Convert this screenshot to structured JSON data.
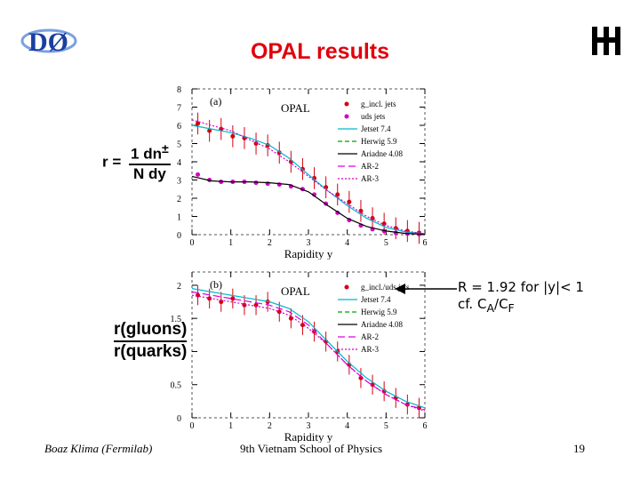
{
  "slide": {
    "title": "OPAL results",
    "footer_left": "Boaz Klima (Fermilab)",
    "footer_center": "9th Vietnam School of Physics",
    "page_number": "19",
    "annotation_line1": "R = 1.92 for |y|< 1",
    "annotation_line2": "cf. C",
    "annotation_sub_a": "A",
    "annotation_slash": "/C",
    "annotation_sub_f": "F",
    "logo_left_text": "DØ",
    "formula_r_prefix": "r =",
    "formula_r_num": "1 dn",
    "formula_r_den": "N dy",
    "formula_r_sup": "±",
    "ratio_num": "r(gluons)",
    "ratio_den": "r(quarks)",
    "colors": {
      "title": "#e0000b",
      "gluon": "#d40010",
      "uds": "#d400c8",
      "jetset": "#00b8c8",
      "ariadne": "#000000",
      "ar2": "#e000e0",
      "herwig": "#00a000"
    }
  },
  "chart_data": [
    {
      "type": "line",
      "panel_label": "(a)",
      "experiment": "OPAL",
      "xlabel": "Rapidity y",
      "ylabel": "r",
      "xlim": [
        0,
        6
      ],
      "ylim": [
        0,
        8
      ],
      "xticks": [
        "0",
        "1",
        "2",
        "3",
        "4",
        "5",
        "6"
      ],
      "yticks": [
        "0",
        "1",
        "2",
        "3",
        "4",
        "5",
        "6",
        "7",
        "8"
      ],
      "legend": [
        "g_incl. jets",
        "uds jets",
        "Jetset 7.4",
        "Herwig 5.9",
        "Ariadne 4.08",
        "AR-2",
        "AR-3"
      ],
      "series": [
        {
          "name": "g_incl. jets",
          "kind": "points",
          "x": [
            0.15,
            0.45,
            0.75,
            1.05,
            1.35,
            1.65,
            1.95,
            2.25,
            2.55,
            2.85,
            3.15,
            3.45,
            3.75,
            4.05,
            4.35,
            4.65,
            4.95,
            5.25,
            5.55,
            5.85
          ],
          "y": [
            6.1,
            5.7,
            5.8,
            5.4,
            5.3,
            5.0,
            4.9,
            4.5,
            4.0,
            3.6,
            3.1,
            2.6,
            2.2,
            1.8,
            1.3,
            0.9,
            0.6,
            0.35,
            0.2,
            0.1
          ],
          "err": 0.6
        },
        {
          "name": "uds jets",
          "kind": "points",
          "x": [
            0.15,
            0.45,
            0.75,
            1.05,
            1.35,
            1.65,
            1.95,
            2.25,
            2.55,
            2.85,
            3.15,
            3.45,
            3.75,
            4.05,
            4.35,
            4.65,
            4.95,
            5.25,
            5.55,
            5.85
          ],
          "y": [
            3.3,
            3.0,
            2.9,
            2.9,
            2.9,
            2.85,
            2.8,
            2.75,
            2.65,
            2.5,
            2.2,
            1.7,
            1.2,
            0.8,
            0.5,
            0.3,
            0.2,
            0.1,
            0.05,
            0.02
          ],
          "err": 0.08
        },
        {
          "name": "Jetset 7.4",
          "kind": "line",
          "x": [
            0,
            0.5,
            1,
            1.5,
            2,
            2.5,
            3,
            3.5,
            4,
            4.5,
            5,
            5.5,
            6
          ],
          "y": [
            6.0,
            5.8,
            5.6,
            5.3,
            4.9,
            4.2,
            3.3,
            2.4,
            1.6,
            0.9,
            0.4,
            0.15,
            0.05
          ]
        },
        {
          "name": "Ariadne 4.08",
          "kind": "line",
          "x": [
            0,
            0.5,
            1,
            1.5,
            2,
            2.5,
            3,
            3.5,
            4,
            4.5,
            5,
            5.5,
            6
          ],
          "y": [
            3.2,
            2.95,
            2.9,
            2.9,
            2.85,
            2.75,
            2.35,
            1.6,
            0.9,
            0.45,
            0.2,
            0.07,
            0.02
          ]
        },
        {
          "name": "AR-3",
          "kind": "line",
          "x": [
            0,
            0.5,
            1,
            1.5,
            2,
            2.5,
            3,
            3.5,
            4,
            4.5,
            5,
            5.5,
            6
          ],
          "y": [
            6.3,
            6.0,
            5.7,
            5.2,
            4.7,
            4.0,
            3.2,
            2.4,
            1.7,
            1.0,
            0.5,
            0.2,
            0.05
          ]
        }
      ]
    },
    {
      "type": "line",
      "panel_label": "(b)",
      "experiment": "OPAL",
      "xlabel": "Rapidity y",
      "ylabel": "r(gluons)/r(quarks)",
      "xlim": [
        0,
        6
      ],
      "ylim": [
        0,
        2.2
      ],
      "xticks": [
        "0",
        "1",
        "2",
        "3",
        "4",
        "5",
        "6"
      ],
      "yticks": [
        "0",
        "0.5",
        "1",
        "1.5",
        "2"
      ],
      "legend": [
        "g_incl./uds jets",
        "Jetset 7.4",
        "Herwig 5.9",
        "Ariadne 4.08",
        "AR-2",
        "AR-3"
      ],
      "series": [
        {
          "name": "g_incl./uds jets",
          "kind": "points",
          "x": [
            0.15,
            0.45,
            0.75,
            1.05,
            1.35,
            1.65,
            1.95,
            2.25,
            2.55,
            2.85,
            3.15,
            3.45,
            3.75,
            4.05,
            4.35,
            4.65,
            4.95,
            5.25,
            5.55,
            5.85
          ],
          "y": [
            1.85,
            1.8,
            1.75,
            1.8,
            1.7,
            1.7,
            1.75,
            1.6,
            1.5,
            1.4,
            1.3,
            1.15,
            1.0,
            0.8,
            0.6,
            0.5,
            0.4,
            0.3,
            0.2,
            0.15
          ],
          "err": 0.15
        },
        {
          "name": "Jetset 7.4",
          "kind": "line",
          "x": [
            0,
            0.5,
            1,
            1.5,
            2,
            2.5,
            3,
            3.5,
            4,
            4.5,
            5,
            5.5,
            6
          ],
          "y": [
            1.95,
            1.9,
            1.85,
            1.8,
            1.75,
            1.65,
            1.45,
            1.15,
            0.85,
            0.6,
            0.4,
            0.25,
            0.15
          ]
        },
        {
          "name": "AR-2",
          "kind": "line",
          "x": [
            0,
            0.5,
            1,
            1.5,
            2,
            2.5,
            3,
            3.5,
            4,
            4.5,
            5,
            5.5,
            6
          ],
          "y": [
            1.9,
            1.85,
            1.8,
            1.75,
            1.7,
            1.6,
            1.4,
            1.1,
            0.8,
            0.55,
            0.35,
            0.2,
            0.12
          ]
        },
        {
          "name": "AR-3",
          "kind": "line",
          "x": [
            0,
            0.5,
            1,
            1.5,
            2,
            2.5,
            3,
            3.5,
            4,
            4.5,
            5,
            5.5,
            6
          ],
          "y": [
            1.85,
            1.8,
            1.75,
            1.7,
            1.65,
            1.55,
            1.35,
            1.1,
            0.8,
            0.55,
            0.35,
            0.2,
            0.1
          ]
        }
      ]
    }
  ]
}
